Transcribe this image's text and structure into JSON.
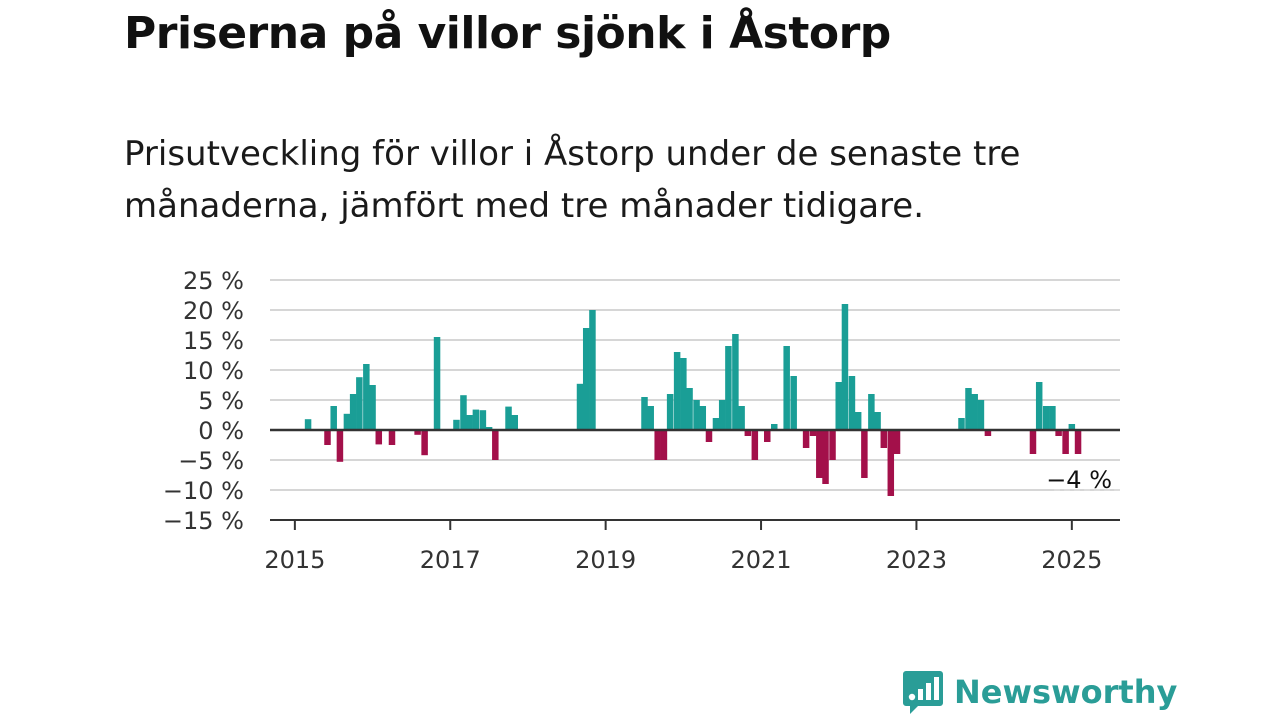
{
  "title": "Priserna på villor sjönk i Åstorp",
  "subtitle": "Prisutveckling för villor i Åstorp under de senaste tre månaderna, jämfört med tre månader tidigare.",
  "brand": {
    "name": "Newsworthy",
    "icon": "newsworthy-logo-icon",
    "color": "#2a9d97"
  },
  "colors": {
    "positive": "#1a9e96",
    "negative": "#a3104a",
    "grid": "#d6d6d6",
    "axis": "#333333"
  },
  "chart_data": {
    "type": "bar",
    "unit": "%",
    "x_ticks": [
      2015,
      2017,
      2019,
      2021,
      2023,
      2025
    ],
    "y_ticks": [
      25,
      20,
      15,
      10,
      5,
      0,
      -5,
      -10,
      -15
    ],
    "y_tick_labels": [
      "25 %",
      "20 %",
      "15 %",
      "10 %",
      "5 %",
      "0 %",
      "−5 %",
      "−10 %",
      "−15 %"
    ],
    "ylim": [
      -15,
      25
    ],
    "xlim": [
      2014.68,
      2025.62
    ],
    "grid": true,
    "last_value_label": "−4 %",
    "points": [
      {
        "x": 2015.17,
        "y": 1.8
      },
      {
        "x": 2015.42,
        "y": -2.5
      },
      {
        "x": 2015.5,
        "y": 4
      },
      {
        "x": 2015.58,
        "y": -5.3
      },
      {
        "x": 2015.67,
        "y": 2.7
      },
      {
        "x": 2015.75,
        "y": 6
      },
      {
        "x": 2015.83,
        "y": 8.8
      },
      {
        "x": 2015.92,
        "y": 11
      },
      {
        "x": 2016.0,
        "y": 7.5
      },
      {
        "x": 2016.08,
        "y": -2.4
      },
      {
        "x": 2016.25,
        "y": -2.5
      },
      {
        "x": 2016.58,
        "y": -0.8
      },
      {
        "x": 2016.67,
        "y": -4.2
      },
      {
        "x": 2016.83,
        "y": 15.5
      },
      {
        "x": 2017.08,
        "y": 1.7
      },
      {
        "x": 2017.17,
        "y": 5.8
      },
      {
        "x": 2017.25,
        "y": 2.5
      },
      {
        "x": 2017.33,
        "y": 3.4
      },
      {
        "x": 2017.42,
        "y": 3.3
      },
      {
        "x": 2017.5,
        "y": 0.5
      },
      {
        "x": 2017.58,
        "y": -5
      },
      {
        "x": 2017.75,
        "y": 3.9
      },
      {
        "x": 2017.83,
        "y": 2.5
      },
      {
        "x": 2018.67,
        "y": 7.7
      },
      {
        "x": 2018.75,
        "y": 17
      },
      {
        "x": 2018.83,
        "y": 20
      },
      {
        "x": 2019.5,
        "y": 5.5
      },
      {
        "x": 2019.58,
        "y": 4
      },
      {
        "x": 2019.67,
        "y": -5
      },
      {
        "x": 2019.75,
        "y": -5
      },
      {
        "x": 2019.83,
        "y": 6
      },
      {
        "x": 2019.92,
        "y": 13
      },
      {
        "x": 2020.0,
        "y": 12
      },
      {
        "x": 2020.08,
        "y": 7
      },
      {
        "x": 2020.17,
        "y": 5
      },
      {
        "x": 2020.25,
        "y": 4
      },
      {
        "x": 2020.33,
        "y": -2
      },
      {
        "x": 2020.42,
        "y": 2
      },
      {
        "x": 2020.5,
        "y": 5
      },
      {
        "x": 2020.58,
        "y": 14
      },
      {
        "x": 2020.67,
        "y": 16
      },
      {
        "x": 2020.75,
        "y": 4
      },
      {
        "x": 2020.83,
        "y": -1
      },
      {
        "x": 2020.92,
        "y": -5
      },
      {
        "x": 2021.08,
        "y": -2
      },
      {
        "x": 2021.17,
        "y": 1
      },
      {
        "x": 2021.33,
        "y": 14
      },
      {
        "x": 2021.42,
        "y": 9
      },
      {
        "x": 2021.58,
        "y": -3
      },
      {
        "x": 2021.67,
        "y": -1
      },
      {
        "x": 2021.75,
        "y": -8
      },
      {
        "x": 2021.83,
        "y": -9
      },
      {
        "x": 2021.92,
        "y": -5
      },
      {
        "x": 2022.0,
        "y": 8
      },
      {
        "x": 2022.08,
        "y": 21
      },
      {
        "x": 2022.17,
        "y": 9
      },
      {
        "x": 2022.25,
        "y": 3
      },
      {
        "x": 2022.33,
        "y": -8
      },
      {
        "x": 2022.42,
        "y": 6
      },
      {
        "x": 2022.5,
        "y": 3
      },
      {
        "x": 2022.58,
        "y": -3
      },
      {
        "x": 2022.67,
        "y": -11
      },
      {
        "x": 2022.75,
        "y": -4
      },
      {
        "x": 2023.58,
        "y": 2
      },
      {
        "x": 2023.67,
        "y": 7
      },
      {
        "x": 2023.75,
        "y": 6
      },
      {
        "x": 2023.83,
        "y": 5
      },
      {
        "x": 2023.92,
        "y": -1
      },
      {
        "x": 2024.5,
        "y": -4
      },
      {
        "x": 2024.58,
        "y": 8
      },
      {
        "x": 2024.67,
        "y": 4
      },
      {
        "x": 2024.75,
        "y": 4
      },
      {
        "x": 2024.83,
        "y": -1
      },
      {
        "x": 2024.92,
        "y": -4
      },
      {
        "x": 2025.0,
        "y": 1
      },
      {
        "x": 2025.08,
        "y": -4
      }
    ]
  }
}
